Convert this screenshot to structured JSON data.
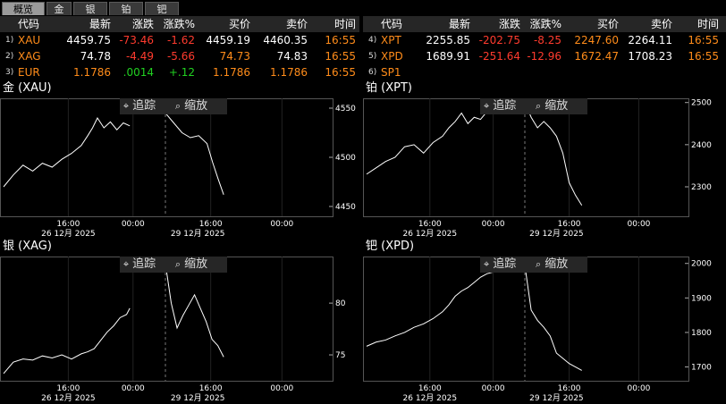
{
  "tabs": [
    "概览",
    "金",
    "银",
    "铂",
    "钯"
  ],
  "table_headers": [
    "代码",
    "最新",
    "涨跌",
    "涨跌%",
    "买价",
    "卖价",
    "时间"
  ],
  "left_rows": [
    {
      "idx": "1)",
      "sym": "XAU",
      "last": "4459.75",
      "chg": "-73.46",
      "pct": "-1.62",
      "bid": "4459.19",
      "ask": "4460.35",
      "time": "16:55"
    },
    {
      "idx": "2)",
      "sym": "XAG",
      "last": "74.78",
      "chg": "-4.49",
      "pct": "-5.66",
      "bid": "74.73",
      "ask": "74.83",
      "time": "16:55"
    },
    {
      "idx": "3)",
      "sym": "EUR",
      "last": "1.1786",
      "chg": ".0014",
      "pct": "+.12",
      "bid": "1.1786",
      "ask": "1.1786",
      "time": "16:55"
    }
  ],
  "right_rows": [
    {
      "idx": "4)",
      "sym": "XPT",
      "last": "2255.85",
      "chg": "-202.75",
      "pct": "-8.25",
      "bid": "2247.60",
      "ask": "2264.11",
      "time": "16:55"
    },
    {
      "idx": "5)",
      "sym": "XPD",
      "last": "1689.91",
      "chg": "-251.64",
      "pct": "-12.96",
      "bid": "1672.47",
      "ask": "1708.23",
      "time": "16:55"
    },
    {
      "idx": "6)",
      "sym": "SP1",
      "last": "",
      "chg": "",
      "pct": "",
      "bid": "",
      "ask": "",
      "time": ""
    }
  ],
  "toolbar": {
    "track": "追踪",
    "zoom": "缩放"
  },
  "colors": {
    "accent": "#ff8c1a",
    "down": "#ff3b2e",
    "up": "#21d121"
  },
  "chart_data": [
    {
      "type": "line",
      "title": "金 (XAU)",
      "x_labels": [
        "16:00",
        "00:00",
        "16:00",
        "00:00"
      ],
      "date_labels": [
        "26 12月 2025",
        "29 12月 2025"
      ],
      "y_ticks": [
        4550,
        4500,
        4450
      ],
      "ylim": [
        4440,
        4560
      ],
      "segments": [
        [
          [
            0,
            4470
          ],
          [
            0.06,
            4482
          ],
          [
            0.12,
            4492
          ],
          [
            0.18,
            4486
          ],
          [
            0.24,
            4494
          ],
          [
            0.3,
            4490
          ],
          [
            0.36,
            4498
          ],
          [
            0.42,
            4504
          ],
          [
            0.48,
            4512
          ],
          [
            0.52,
            4522
          ],
          [
            0.55,
            4530
          ],
          [
            0.58,
            4540
          ],
          [
            0.62,
            4530
          ],
          [
            0.66,
            4536
          ],
          [
            0.7,
            4528
          ],
          [
            0.74,
            4535
          ],
          [
            0.78,
            4532
          ]
        ],
        [
          [
            0.79,
            4545
          ],
          [
            0.82,
            4535
          ],
          [
            0.85,
            4525
          ],
          [
            0.88,
            4520
          ],
          [
            0.91,
            4522
          ],
          [
            0.94,
            4514
          ],
          [
            0.96,
            4495
          ],
          [
            0.98,
            4478
          ],
          [
            1.0,
            4462
          ]
        ]
      ]
    },
    {
      "type": "line",
      "title": "铂 (XPT)",
      "x_labels": [
        "16:00",
        "00:00",
        "16:00",
        "00:00"
      ],
      "date_labels": [
        "26 12月 2025",
        "29 12月 2025"
      ],
      "y_ticks": [
        2500,
        2400,
        2300
      ],
      "ylim": [
        2230,
        2510
      ],
      "segments": [
        [
          [
            0,
            2330
          ],
          [
            0.06,
            2345
          ],
          [
            0.12,
            2360
          ],
          [
            0.18,
            2370
          ],
          [
            0.24,
            2395
          ],
          [
            0.3,
            2400
          ],
          [
            0.36,
            2380
          ],
          [
            0.42,
            2405
          ],
          [
            0.48,
            2420
          ],
          [
            0.52,
            2440
          ],
          [
            0.56,
            2455
          ],
          [
            0.6,
            2475
          ],
          [
            0.64,
            2450
          ],
          [
            0.68,
            2465
          ],
          [
            0.72,
            2460
          ],
          [
            0.76,
            2478
          ],
          [
            0.8,
            2485
          ]
        ],
        [
          [
            0.82,
            2500
          ],
          [
            0.84,
            2465
          ],
          [
            0.86,
            2440
          ],
          [
            0.88,
            2455
          ],
          [
            0.9,
            2440
          ],
          [
            0.92,
            2420
          ],
          [
            0.94,
            2380
          ],
          [
            0.96,
            2310
          ],
          [
            0.98,
            2280
          ],
          [
            1.0,
            2256
          ]
        ]
      ]
    },
    {
      "type": "line",
      "title": "银 (XAG)",
      "x_labels": [
        "16:00",
        "00:00",
        "16:00",
        "00:00"
      ],
      "date_labels": [
        "26 12月 2025",
        "29 12月 2025"
      ],
      "y_ticks": [
        80,
        75
      ],
      "ylim": [
        72.5,
        84.5
      ],
      "segments": [
        [
          [
            0,
            73.2
          ],
          [
            0.06,
            74.3
          ],
          [
            0.12,
            74.6
          ],
          [
            0.18,
            74.5
          ],
          [
            0.24,
            74.9
          ],
          [
            0.3,
            74.7
          ],
          [
            0.36,
            75.0
          ],
          [
            0.42,
            74.6
          ],
          [
            0.48,
            75.1
          ],
          [
            0.52,
            75.3
          ],
          [
            0.56,
            75.6
          ],
          [
            0.6,
            76.4
          ],
          [
            0.64,
            77.2
          ],
          [
            0.68,
            77.8
          ],
          [
            0.72,
            78.6
          ],
          [
            0.76,
            78.9
          ],
          [
            0.78,
            79.5
          ]
        ],
        [
          [
            0.8,
            83.8
          ],
          [
            0.82,
            80.0
          ],
          [
            0.84,
            77.6
          ],
          [
            0.86,
            78.8
          ],
          [
            0.88,
            79.8
          ],
          [
            0.9,
            80.8
          ],
          [
            0.92,
            79.5
          ],
          [
            0.94,
            78.2
          ],
          [
            0.96,
            76.5
          ],
          [
            0.98,
            75.9
          ],
          [
            1.0,
            74.8
          ]
        ]
      ]
    },
    {
      "type": "line",
      "title": "钯 (XPD)",
      "x_labels": [
        "16:00",
        "00:00",
        "16:00",
        "00:00"
      ],
      "date_labels": [
        "26 12月 2025",
        "29 12月 2025"
      ],
      "y_ticks": [
        2000,
        1900,
        1800,
        1700
      ],
      "ylim": [
        1660,
        2020
      ],
      "segments": [
        [
          [
            0,
            1760
          ],
          [
            0.06,
            1772
          ],
          [
            0.12,
            1778
          ],
          [
            0.18,
            1790
          ],
          [
            0.24,
            1800
          ],
          [
            0.3,
            1815
          ],
          [
            0.36,
            1825
          ],
          [
            0.42,
            1840
          ],
          [
            0.48,
            1860
          ],
          [
            0.52,
            1880
          ],
          [
            0.56,
            1905
          ],
          [
            0.6,
            1920
          ],
          [
            0.64,
            1930
          ],
          [
            0.68,
            1945
          ],
          [
            0.72,
            1960
          ],
          [
            0.76,
            1970
          ],
          [
            0.8,
            1975
          ]
        ],
        [
          [
            0.82,
            1995
          ],
          [
            0.84,
            1865
          ],
          [
            0.86,
            1835
          ],
          [
            0.88,
            1815
          ],
          [
            0.9,
            1790
          ],
          [
            0.92,
            1740
          ],
          [
            0.94,
            1725
          ],
          [
            0.96,
            1710
          ],
          [
            0.98,
            1700
          ],
          [
            1.0,
            1690
          ]
        ]
      ]
    }
  ]
}
